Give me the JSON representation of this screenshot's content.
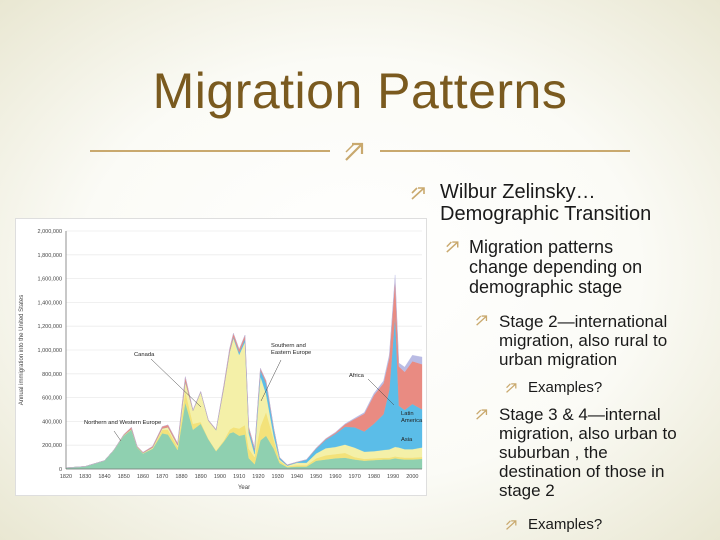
{
  "slide": {
    "title": "Migration Patterns",
    "bullets": {
      "l1": "Wilbur Zelinsky…\nDemographic Transition",
      "l2": "Migration patterns\nchange depending on\ndemographic stage",
      "l3a": "Stage 2—international\nmigration, also rural to\nurban migration",
      "l4a": "Examples?",
      "l3b": "Stage 3 & 4—internal\nmigration, also urban to\nsuburban , the\ndestination of those in\nstage 2",
      "l4b": "Examples?"
    },
    "colors": {
      "title": "#7a5a1f",
      "rule": "#c9a96e",
      "bullet_icon": "#c9a96e"
    }
  },
  "chart_data": {
    "type": "area",
    "title": "",
    "ylabel": "Annual immigration into the United States",
    "xlabel": "Year",
    "ylim": [
      0,
      2000000
    ],
    "xlim": [
      1820,
      2005
    ],
    "x_ticks": [
      "1820",
      "1830",
      "1840",
      "1850",
      "1860",
      "1870",
      "1880",
      "1890",
      "1900",
      "1910",
      "1920",
      "1930",
      "1940",
      "1950",
      "1960",
      "1970",
      "1980",
      "1990",
      "2000"
    ],
    "y_ticks": [
      "0",
      "200,000",
      "400,000",
      "600,000",
      "800,000",
      "1,000,000",
      "1,200,000",
      "1,400,000",
      "1,600,000",
      "1,800,000",
      "2,000,000"
    ],
    "x": [
      1820,
      1830,
      1840,
      1845,
      1850,
      1854,
      1857,
      1860,
      1865,
      1870,
      1873,
      1878,
      1882,
      1886,
      1890,
      1894,
      1898,
      1902,
      1905,
      1907,
      1910,
      1913,
      1915,
      1918,
      1921,
      1924,
      1928,
      1931,
      1935,
      1940,
      1945,
      1950,
      1955,
      1960,
      1965,
      1970,
      1975,
      1980,
      1985,
      1988,
      1991,
      1993,
      1996,
      2000,
      2005
    ],
    "series": [
      {
        "name": "Northern and Western Europe",
        "color": "#8fd0b0",
        "values": [
          10000,
          22000,
          70000,
          160000,
          280000,
          330000,
          180000,
          130000,
          170000,
          300000,
          290000,
          160000,
          560000,
          330000,
          380000,
          250000,
          150000,
          230000,
          300000,
          310000,
          280000,
          290000,
          90000,
          40000,
          240000,
          280000,
          170000,
          50000,
          15000,
          20000,
          20000,
          70000,
          80000,
          90000,
          95000,
          80000,
          70000,
          75000,
          80000,
          80000,
          90000,
          85000,
          80000,
          80000,
          85000
        ]
      },
      {
        "name": "Canada",
        "color": "#f3e27a",
        "values": [
          0,
          0,
          1000,
          2000,
          3000,
          4000,
          3000,
          3000,
          5000,
          30000,
          40000,
          25000,
          95000,
          50000,
          15000,
          5000,
          5000,
          10000,
          30000,
          40000,
          60000,
          80000,
          80000,
          60000,
          120000,
          200000,
          75000,
          20000,
          8000,
          12000,
          12000,
          20000,
          35000,
          35000,
          40000,
          20000,
          15000,
          15000,
          15000,
          15000,
          16000,
          16000,
          16000,
          16000,
          16000
        ]
      },
      {
        "name": "Southern and Eastern Europe",
        "color": "#f4f0a8",
        "values": [
          0,
          0,
          0,
          0,
          1000,
          2000,
          2000,
          2000,
          5000,
          10000,
          20000,
          15000,
          80000,
          110000,
          250000,
          150000,
          170000,
          440000,
          650000,
          750000,
          620000,
          700000,
          130000,
          25000,
          420000,
          150000,
          30000,
          10000,
          5000,
          20000,
          20000,
          40000,
          60000,
          60000,
          70000,
          80000,
          60000,
          60000,
          65000,
          70000,
          80000,
          80000,
          70000,
          70000,
          80000
        ]
      },
      {
        "name": "Latin America",
        "color": "#5bbde8",
        "values": [
          0,
          0,
          0,
          0,
          0,
          0,
          0,
          0,
          1000,
          1000,
          1000,
          1000,
          1000,
          1000,
          2000,
          2000,
          3000,
          3000,
          5000,
          10000,
          20000,
          25000,
          30000,
          35000,
          50000,
          90000,
          60000,
          15000,
          5000,
          5000,
          25000,
          40000,
          70000,
          110000,
          150000,
          170000,
          170000,
          230000,
          300000,
          500000,
          1100000,
          350000,
          330000,
          380000,
          320000
        ]
      },
      {
        "name": "Asia",
        "color": "#e98b82",
        "values": [
          0,
          0,
          0,
          0,
          5000,
          15000,
          5000,
          5000,
          10000,
          15000,
          20000,
          15000,
          40000,
          5000,
          5000,
          5000,
          5000,
          20000,
          25000,
          30000,
          25000,
          30000,
          20000,
          15000,
          15000,
          20000,
          5000,
          2000,
          2000,
          2000,
          2000,
          5000,
          8000,
          10000,
          20000,
          70000,
          150000,
          240000,
          260000,
          270000,
          310000,
          330000,
          320000,
          360000,
          380000
        ]
      },
      {
        "name": "Africa",
        "color": "#b9bbe4",
        "values": [
          0,
          0,
          0,
          0,
          0,
          0,
          0,
          0,
          0,
          0,
          0,
          0,
          0,
          0,
          0,
          0,
          0,
          0,
          0,
          0,
          1000,
          1000,
          1000,
          1000,
          1000,
          1000,
          1000,
          1000,
          1000,
          1000,
          1000,
          2000,
          3000,
          4000,
          5000,
          8000,
          10000,
          15000,
          20000,
          25000,
          35000,
          30000,
          40000,
          50000,
          60000
        ]
      }
    ],
    "annotations": [
      "Northern and Western Europe",
      "Canada",
      "Southern and Eastern Europe",
      "Africa",
      "Latin America",
      "Asia"
    ]
  }
}
